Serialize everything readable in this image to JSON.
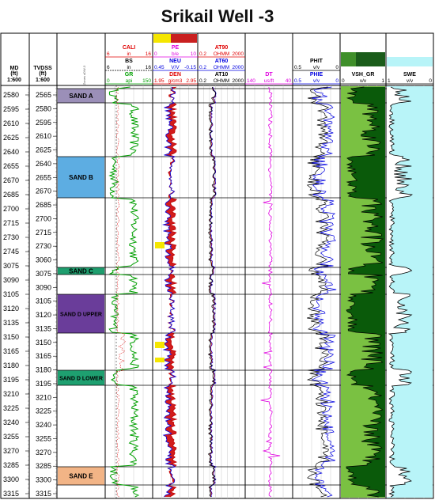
{
  "title": "Srikail Well -3",
  "depth_columns": {
    "md": {
      "label": "MD",
      "unit": "(ft)",
      "scale": "1:600"
    },
    "tvdss": {
      "label": "TVDSS",
      "unit": "(ft)",
      "scale": "1:600"
    },
    "zone_label": "Zones xDW-3"
  },
  "md_ticks": [
    "2580",
    "2595",
    "2610",
    "2625",
    "2640",
    "2655",
    "2670",
    "2685",
    "2700",
    "2715",
    "2730",
    "2745",
    "3075",
    "3090",
    "3105",
    "3120",
    "3135",
    "3150",
    "3165",
    "3180",
    "3195",
    "3210",
    "3225",
    "3240",
    "3255",
    "3270",
    "3285",
    "3300",
    "3315"
  ],
  "tvdss_ticks": [
    "2565",
    "2580",
    "2595",
    "2610",
    "2625",
    "2640",
    "2655",
    "2670",
    "2685",
    "2700",
    "2715",
    "2730",
    "3060",
    "3075",
    "3090",
    "3105",
    "3120",
    "3135",
    "3150",
    "3165",
    "3180",
    "3195",
    "3210",
    "3225",
    "3240",
    "3255",
    "3270",
    "3285",
    "3300",
    "3315"
  ],
  "zones": [
    {
      "name": "SAND A",
      "color": "#9b8fb8"
    },
    {
      "name": "SAND B",
      "color": "#5dade2"
    },
    {
      "name": "SAND C",
      "color": "#1e9e6e"
    },
    {
      "name": "SAND D UPPER",
      "color": "#6a3d9a"
    },
    {
      "name": "SAND D LOWER",
      "color": "#1ea070"
    },
    {
      "name": "SAND E",
      "color": "#f2b486"
    }
  ],
  "track1": {
    "curves": [
      {
        "name": "CALI",
        "min": "6",
        "unit": "in",
        "max": "16",
        "color": "#e00000"
      },
      {
        "name": "BS",
        "min": "6",
        "unit": "in",
        "max": "16",
        "color": "#000000"
      },
      {
        "name": "GR",
        "min": "0",
        "unit": "api",
        "max": "150",
        "color": "#00a000"
      }
    ]
  },
  "track2": {
    "curves": [
      {
        "name": "PE",
        "min": "0",
        "unit": "b/e",
        "max": "10",
        "color": "#e000e0"
      },
      {
        "name": "NEU",
        "min": "0.45",
        "unit": "V/V",
        "max": "-0.15",
        "color": "#0000e0"
      },
      {
        "name": "DEN",
        "min": "1.95",
        "unit": "g/cm3",
        "max": "2.95",
        "color": "#e00000"
      }
    ]
  },
  "track3": {
    "curves": [
      {
        "name": "AT90",
        "min": "0.2",
        "unit": "OHMM",
        "max": "2000",
        "color": "#e00000"
      },
      {
        "name": "AT60",
        "min": "0.2",
        "unit": "OHMM",
        "max": "2000",
        "color": "#0000e0"
      },
      {
        "name": "AT10",
        "min": "0.2",
        "unit": "OHMM",
        "max": "2000",
        "color": "#000000"
      }
    ]
  },
  "track4": {
    "curves": [
      {
        "name": "DT",
        "min": "140",
        "unit": "us/ft",
        "max": "40",
        "color": "#e000e0"
      }
    ]
  },
  "track5": {
    "curves": [
      {
        "name": "PHIT",
        "min": "0.5",
        "unit": "v/v",
        "max": "0",
        "color": "#000000"
      },
      {
        "name": "PHIE",
        "min": "0.5",
        "unit": "v/v",
        "max": "0",
        "color": "#0000e0"
      }
    ]
  },
  "track6": {
    "curves": [
      {
        "name": "VSH_GR",
        "min": "0",
        "unit": "v/v",
        "max": "1",
        "color": "#000000"
      }
    ]
  },
  "track7": {
    "curves": [
      {
        "name": "SWE",
        "min": "1",
        "unit": "v/v",
        "max": "0",
        "color": "#000000"
      }
    ]
  },
  "colors": {
    "gr": "#00a000",
    "den_fill": "#d01010",
    "neu": "#0000e0",
    "shale_fill": "#0a5a0a",
    "sand_fill": "#7ac142",
    "water_fill": "#b8f4f8",
    "grid": "#c8c8c8",
    "pe": "#e000e0"
  }
}
